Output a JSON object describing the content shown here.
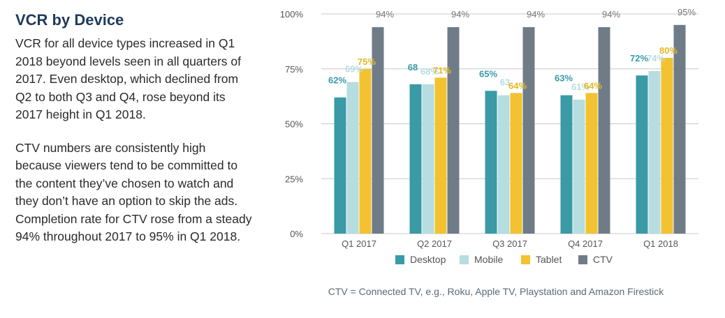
{
  "text": {
    "heading": "VCR by Device",
    "paragraph1": "VCR for all device types increased in Q1 2018 beyond levels seen in all quarters of 2017. Even desktop, which declined from Q2 to both Q3 and Q4, rose beyond its 2017 height in Q1 2018.",
    "paragraph2": "CTV numbers are consistently high because viewers tend to be committed to the content they’ve chosen to watch and they don’t have an option to skip the ads. Completion rate for CTV rose from a steady 94% throughout 2017 to 95% in Q1 2018.",
    "caption": "CTV = Connected TV, e.g., Roku, Apple TV, Playstation and Amazon Firestick"
  },
  "chart_data": {
    "type": "bar",
    "categories": [
      "Q1 2017",
      "Q2 2017",
      "Q3 2017",
      "Q4 2017",
      "Q1 2018"
    ],
    "series": [
      {
        "name": "Desktop",
        "color": "#3a9aa6",
        "values": [
          62,
          68,
          65,
          63,
          72
        ],
        "labels": [
          "62%",
          "68",
          "65%",
          "63%",
          "72%"
        ]
      },
      {
        "name": "Mobile",
        "color": "#b6dde0",
        "values": [
          69,
          68,
          63,
          61,
          74
        ],
        "labels": [
          "69%",
          "68%",
          "63",
          "61%",
          "74%"
        ]
      },
      {
        "name": "Tablet",
        "color": "#f2c230",
        "values": [
          75,
          71,
          64,
          64,
          80
        ],
        "labels": [
          "75%",
          "71%",
          "64%",
          "64%",
          "80%"
        ]
      },
      {
        "name": "CTV",
        "color": "#6f7c88",
        "values": [
          94,
          94,
          94,
          94,
          95
        ],
        "labels": [
          "94%",
          "94%",
          "94%",
          "94%",
          "95%"
        ]
      }
    ],
    "yticks": [
      "0%",
      "25%",
      "50%",
      "75%",
      "100%"
    ],
    "ylim": [
      0,
      100
    ],
    "grid": true,
    "legend_position": "bottom"
  }
}
